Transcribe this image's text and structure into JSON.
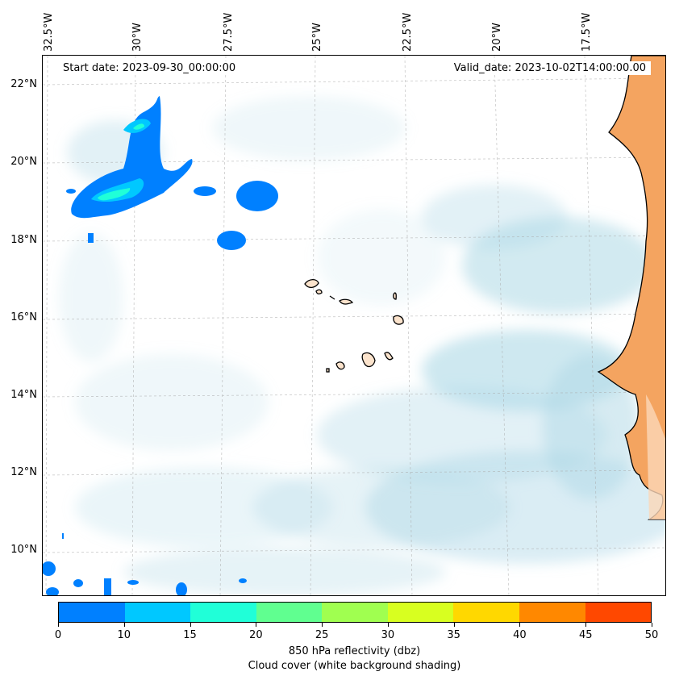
{
  "map": {
    "start_date": "Start date: 2023-09-30_00:00:00",
    "valid_date": "Valid_date: 2023-10-02T14:00:00.00",
    "lat_labels": [
      "22°N",
      "20°N",
      "18°N",
      "16°N",
      "14°N",
      "12°N",
      "10°N"
    ],
    "lon_labels": [
      "32.5°W",
      "30°W",
      "27.5°W",
      "25°W",
      "22.5°W",
      "20°W",
      "17.5°W"
    ]
  },
  "colorbar": {
    "ticks": [
      "0",
      "10",
      "15",
      "20",
      "25",
      "30",
      "35",
      "40",
      "45",
      "50"
    ],
    "colors": [
      "#0080ff",
      "#00c8ff",
      "#20ffd8",
      "#60ff90",
      "#a0ff50",
      "#d8ff20",
      "#ffd800",
      "#ff8800",
      "#ff4800"
    ],
    "label": "850 hPa reflectivity (dbz)",
    "sublabel": "Cloud cover (white background shading)"
  },
  "colors": {
    "land": "#f4a460",
    "cloud": "#add8e6",
    "coast": "#000000"
  }
}
